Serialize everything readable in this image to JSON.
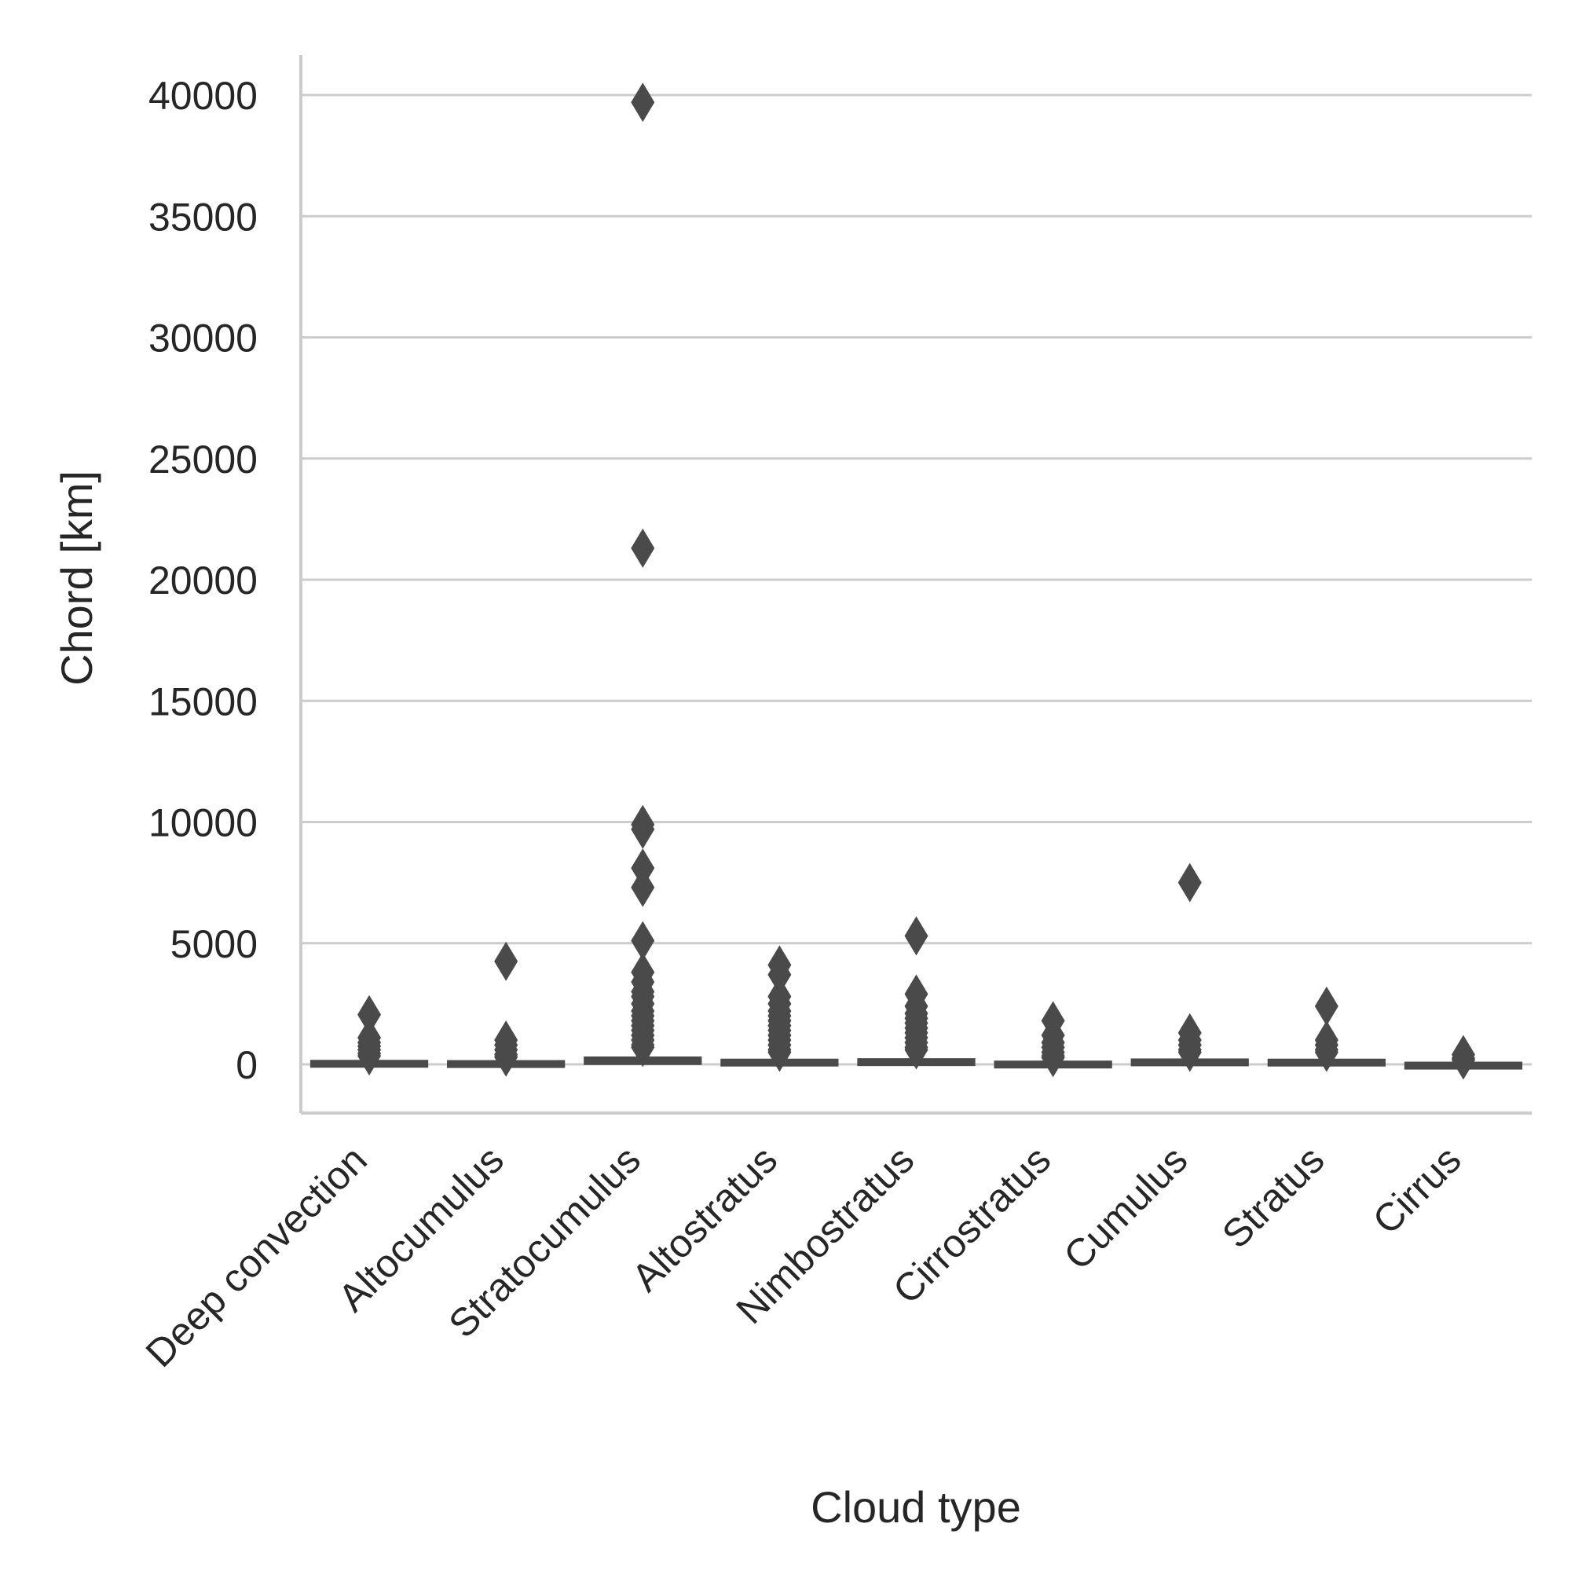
{
  "chart_data": {
    "type": "box",
    "title": "",
    "xlabel": "Cloud type",
    "ylabel": "Chord [km]",
    "ylim": [
      -2000,
      41700
    ],
    "y_ticks": [
      0,
      5000,
      10000,
      15000,
      20000,
      25000,
      30000,
      35000,
      40000
    ],
    "y_tick_labels": [
      "0",
      "5000",
      "10000",
      "15000",
      "20000",
      "25000",
      "30000",
      "35000",
      "40000"
    ],
    "grid": "horizontal",
    "color": "#4a4a4a",
    "categories": [
      "Deep convection",
      "Altocumulus",
      "Stratocumulus",
      "Altostratus",
      "Nimbostratus",
      "Cirrostratus",
      "Cumulus",
      "Stratus",
      "Cirrus"
    ],
    "boxes": [
      {
        "category": "Deep convection",
        "q1": 20,
        "median": 60,
        "q3": 120,
        "whisker_low": 0,
        "whisker_high": 280,
        "outliers": [
          2050,
          1100,
          900,
          750,
          600,
          450,
          350
        ]
      },
      {
        "category": "Altocumulus",
        "q1": 20,
        "median": 50,
        "q3": 110,
        "whisker_low": 0,
        "whisker_high": 250,
        "outliers": [
          4250,
          1000,
          800,
          600,
          400,
          300
        ]
      },
      {
        "category": "Stratocumulus",
        "q1": 40,
        "median": 120,
        "q3": 260,
        "whisker_low": 0,
        "whisker_high": 600,
        "outliers": [
          39700,
          21300,
          9900,
          9700,
          8100,
          7300,
          5100,
          3800,
          3400,
          3000,
          2800,
          2500,
          2200,
          2000,
          1800,
          1600,
          1400,
          1200,
          1000,
          800,
          700
        ]
      },
      {
        "category": "Altostratus",
        "q1": 30,
        "median": 80,
        "q3": 170,
        "whisker_low": 0,
        "whisker_high": 400,
        "outliers": [
          4100,
          3700,
          2800,
          2500,
          2200,
          2000,
          1800,
          1600,
          1400,
          1200,
          1000,
          800,
          600,
          500
        ]
      },
      {
        "category": "Nimbostratus",
        "q1": 30,
        "median": 90,
        "q3": 190,
        "whisker_low": 0,
        "whisker_high": 450,
        "outliers": [
          5300,
          2900,
          2400,
          2100,
          1900,
          1700,
          1500,
          1300,
          1100,
          900,
          700,
          600
        ]
      },
      {
        "category": "Cirrostratus",
        "q1": 15,
        "median": 40,
        "q3": 90,
        "whisker_low": 0,
        "whisker_high": 220,
        "outliers": [
          1800,
          1200,
          900,
          700,
          500,
          350,
          280
        ]
      },
      {
        "category": "Cumulus",
        "q1": 30,
        "median": 80,
        "q3": 180,
        "whisker_low": 0,
        "whisker_high": 420,
        "outliers": [
          7500,
          1300,
          1000,
          800,
          600,
          500
        ]
      },
      {
        "category": "Stratus",
        "q1": 30,
        "median": 80,
        "q3": 170,
        "whisker_low": 0,
        "whisker_high": 400,
        "outliers": [
          2400,
          1000,
          800,
          600,
          500
        ]
      },
      {
        "category": "Cirrus",
        "q1": 5,
        "median": 20,
        "q3": 45,
        "whisker_low": 0,
        "whisker_high": 110,
        "outliers": [
          400,
          250,
          180
        ]
      }
    ]
  }
}
